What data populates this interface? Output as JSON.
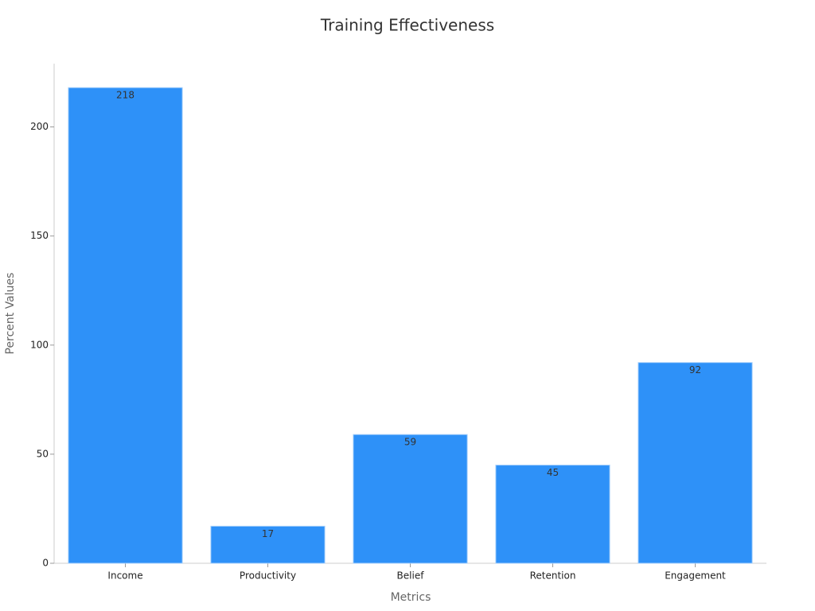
{
  "chart_data": {
    "type": "bar",
    "title": "Training Effectiveness",
    "x_label": "Metrics",
    "y_label": "Percent Values",
    "categories": [
      "Income",
      "Productivity",
      "Belief",
      "Retention",
      "Engagement"
    ],
    "values": [
      218,
      17,
      59,
      45,
      92
    ],
    "color": "#2e91f8",
    "ylim": [
      0,
      229
    ],
    "yticks": [
      0,
      50,
      100,
      150,
      200
    ],
    "grid": false
  }
}
